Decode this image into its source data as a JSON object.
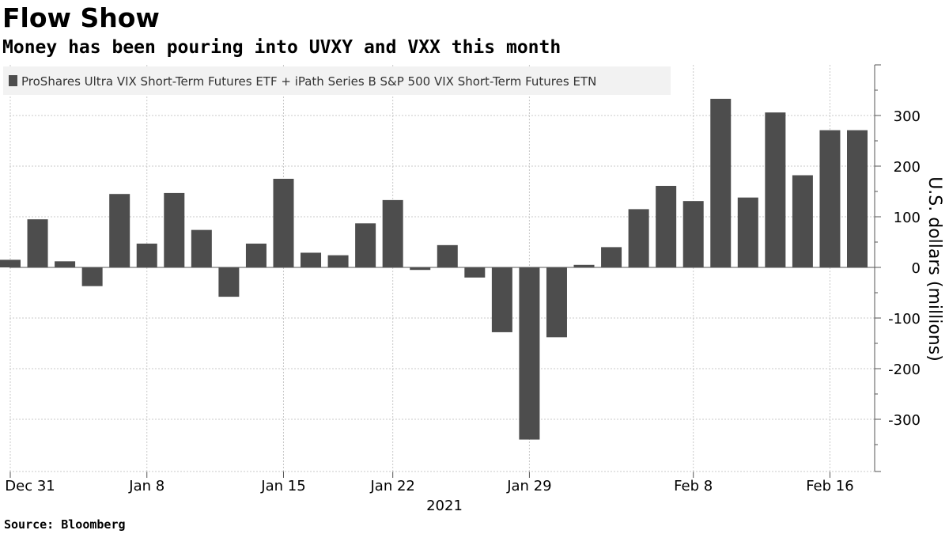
{
  "title": "Flow Show",
  "subtitle": "Money has been pouring into UVXY and VXX this month",
  "source": "Source:  Bloomberg",
  "colors": {
    "bar": "#4d4d4d",
    "grid": "#c8c8c8",
    "axis": "#555555",
    "legend_bg": "#f2f2f2"
  },
  "chart_data": {
    "type": "bar",
    "legend": "ProShares Ultra VIX Short-Term Futures ETF + iPath Series B S&P 500 VIX Short-Term Futures ETN",
    "legend_position": "top-left",
    "ylabel": "U.S. dollars (millions)",
    "ylim": [
      -400,
      400
    ],
    "yticks": [
      -300,
      -200,
      -100,
      0,
      100,
      200,
      300
    ],
    "grid": true,
    "year_label": "2021",
    "x_tick_labels": [
      "Dec 31",
      "Jan 8",
      "Jan 15",
      "Jan 22",
      "Jan 29",
      "Feb 8",
      "Feb 16"
    ],
    "categories": [
      "2020-12-31",
      "2021-01-04",
      "2021-01-05",
      "2021-01-06",
      "2021-01-07",
      "2021-01-08",
      "2021-01-11",
      "2021-01-12",
      "2021-01-13",
      "2021-01-14",
      "2021-01-15",
      "2021-01-19",
      "2021-01-20",
      "2021-01-21",
      "2021-01-22",
      "2021-01-25",
      "2021-01-26",
      "2021-01-27",
      "2021-01-28",
      "2021-01-29",
      "2021-02-01",
      "2021-02-02",
      "2021-02-03",
      "2021-02-04",
      "2021-02-05",
      "2021-02-08",
      "2021-02-09",
      "2021-02-10",
      "2021-02-11",
      "2021-02-12",
      "2021-02-16",
      "2021-02-17"
    ],
    "values": [
      15,
      95,
      12,
      -37,
      145,
      47,
      147,
      74,
      -58,
      47,
      175,
      29,
      24,
      87,
      133,
      -5,
      44,
      -20,
      -128,
      -340,
      -138,
      5,
      40,
      115,
      161,
      131,
      333,
      138,
      306,
      182,
      271,
      271
    ]
  }
}
